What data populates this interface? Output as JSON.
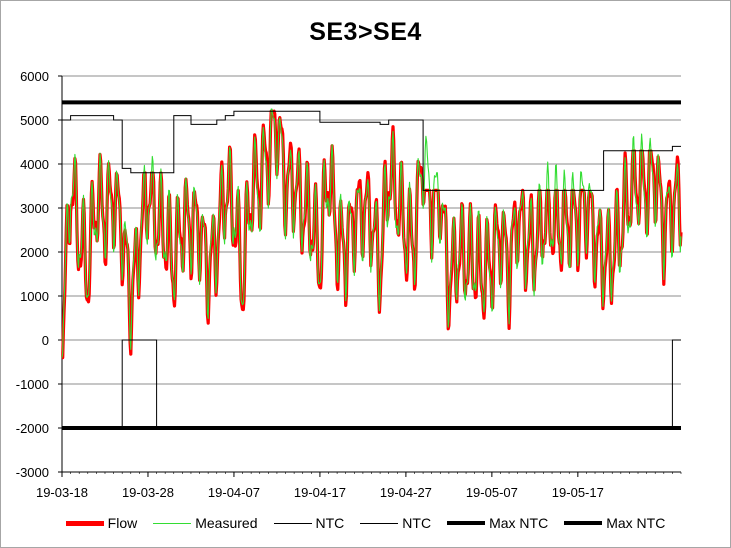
{
  "chart_data": {
    "type": "line",
    "title": "SE3>SE4",
    "xlabel": "",
    "ylabel": "",
    "ylim": [
      -3000,
      6000
    ],
    "yticks": [
      -3000,
      -2000,
      -1000,
      0,
      1000,
      2000,
      3000,
      4000,
      5000,
      6000
    ],
    "xlim": [
      "2019-03-18",
      "2019-05-29"
    ],
    "x_tick_labels": [
      "19-03-18",
      "19-03-28",
      "19-04-07",
      "19-04-17",
      "19-04-27",
      "19-05-07",
      "19-05-17"
    ],
    "grid": "horizontal",
    "legend_position": "bottom",
    "series": [
      {
        "name": "Flow",
        "color": "#ff0000",
        "values_per_day": [
          -300,
          3600,
          2400,
          1500,
          3300,
          2800,
          3300,
          2500,
          800,
          2200,
          3500,
          2800,
          2500,
          1700,
          2700,
          2600,
          2600,
          1500,
          2200,
          3500,
          3000,
          1300,
          3500,
          3600,
          4300,
          5000,
          3500,
          3600,
          3000,
          2800,
          1800,
          4000,
          2300,
          2000,
          2800,
          3000,
          2800,
          1600,
          3900,
          3300,
          2400,
          2200,
          4300,
          3100,
          3400,
          1200,
          2000,
          1900,
          1800,
          1500,
          1800,
          2500,
          1500,
          2900,
          2200,
          2200,
          2800,
          2800,
          2600,
          2800,
          2800,
          3100,
          2300,
          1800,
          1900,
          2600,
          3400,
          3700,
          3500,
          3900,
          2500,
          3100,
          3300
        ]
      },
      {
        "name": "Measured",
        "color": "#33dd33",
        "values_per_day": [
          -200,
          3700,
          2500,
          1600,
          3200,
          2900,
          3200,
          2600,
          900,
          2300,
          3400,
          2700,
          2600,
          1800,
          2600,
          2700,
          2500,
          1600,
          2300,
          3400,
          3100,
          1400,
          3400,
          3500,
          4200,
          4900,
          3400,
          3500,
          3100,
          2700,
          1900,
          3900,
          2400,
          2100,
          2700,
          2900,
          2700,
          1700,
          3800,
          3200,
          2500,
          2300,
          4200,
          3000,
          3300,
          1300,
          2100,
          1800,
          1900,
          1600,
          1700,
          2400,
          1600,
          2800,
          2300,
          2100,
          2700,
          2900,
          2700,
          2700,
          2900,
          3200,
          2400,
          1900,
          2000,
          2500,
          3300,
          3600,
          3400,
          3800,
          2600,
          3000,
          3200
        ]
      },
      {
        "name": "NTC",
        "color": "#000000",
        "step_points": [
          [
            "2019-03-18",
            5000
          ],
          [
            "2019-03-19",
            5100
          ],
          [
            "2019-03-24",
            5000
          ],
          [
            "2019-03-25",
            3900
          ],
          [
            "2019-03-26",
            3800
          ],
          [
            "2019-03-30",
            3800
          ],
          [
            "2019-03-31",
            5100
          ],
          [
            "2019-04-02",
            4900
          ],
          [
            "2019-04-05",
            5000
          ],
          [
            "2019-04-06",
            5100
          ],
          [
            "2019-04-07",
            5200
          ],
          [
            "2019-04-16",
            5200
          ],
          [
            "2019-04-17",
            4950
          ],
          [
            "2019-04-24",
            4900
          ],
          [
            "2019-04-25",
            5000
          ],
          [
            "2019-04-29",
            5000
          ],
          [
            "2019-04-29",
            3400
          ],
          [
            "2019-05-20",
            3400
          ],
          [
            "2019-05-20",
            4300
          ],
          [
            "2019-05-28",
            4300
          ],
          [
            "2019-05-28",
            4400
          ],
          [
            "2019-05-29",
            4400
          ]
        ]
      },
      {
        "name": "NTC",
        "color": "#000000",
        "step_points": [
          [
            "2019-03-18",
            -2000
          ],
          [
            "2019-03-25",
            -2000
          ],
          [
            "2019-03-25",
            0
          ],
          [
            "2019-03-29",
            0
          ],
          [
            "2019-03-29",
            -2000
          ],
          [
            "2019-05-28",
            -2000
          ],
          [
            "2019-05-28",
            0
          ],
          [
            "2019-05-29",
            0
          ]
        ]
      },
      {
        "name": "Max NTC",
        "color": "#000000",
        "constant": 5400
      },
      {
        "name": "Max NTC",
        "color": "#000000",
        "constant": -2000
      }
    ]
  }
}
